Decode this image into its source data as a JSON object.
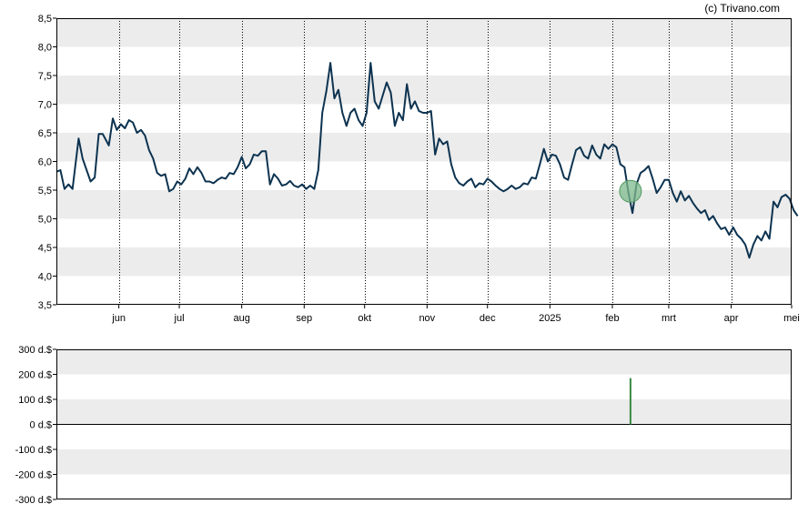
{
  "credit": "(c) Trivano.com",
  "colors": {
    "band": "#ececec",
    "line": "#0d3350",
    "marker_fill": "#7dba8c",
    "marker_stroke": "#4f9a60",
    "volume_bar": "#3a8a45",
    "axis": "#000000"
  },
  "chart_data": [
    {
      "type": "line",
      "title": "",
      "xlabel": "",
      "ylabel": "",
      "ylim": [
        3.5,
        8.5
      ],
      "yticks": [
        "3,5",
        "4,0",
        "4,5",
        "5,0",
        "5,5",
        "6,0",
        "6,5",
        "7,0",
        "7,5",
        "8,0",
        "8,5"
      ],
      "ytick_values": [
        3.5,
        4.0,
        4.5,
        5.0,
        5.5,
        6.0,
        6.5,
        7.0,
        7.5,
        8.0,
        8.5
      ],
      "grid": "alternating horizontal bands, dotted vertical month lines",
      "x_ticks": [
        {
          "label": "jun",
          "date": "2024-06-01"
        },
        {
          "label": "jul",
          "date": "2024-07-01"
        },
        {
          "label": "aug",
          "date": "2024-08-01"
        },
        {
          "label": "sep",
          "date": "2024-09-01"
        },
        {
          "label": "okt",
          "date": "2024-10-01"
        },
        {
          "label": "nov",
          "date": "2024-11-01"
        },
        {
          "label": "dec",
          "date": "2024-12-01"
        },
        {
          "label": "2025",
          "date": "2025-01-01"
        },
        {
          "label": "feb",
          "date": "2025-02-01"
        },
        {
          "label": "mrt",
          "date": "2025-03-01"
        },
        {
          "label": "apr",
          "date": "2025-04-01"
        },
        {
          "label": "mei",
          "date": "2025-05-01"
        }
      ],
      "series": [
        {
          "points": [
            [
              "2024-05-01",
              5.82
            ],
            [
              "2024-05-03",
              5.85
            ],
            [
              "2024-05-05",
              5.52
            ],
            [
              "2024-05-07",
              5.6
            ],
            [
              "2024-05-09",
              5.52
            ],
            [
              "2024-05-12",
              6.4
            ],
            [
              "2024-05-14",
              6.05
            ],
            [
              "2024-05-16",
              5.85
            ],
            [
              "2024-05-18",
              5.65
            ],
            [
              "2024-05-20",
              5.72
            ],
            [
              "2024-05-22",
              6.48
            ],
            [
              "2024-05-24",
              6.48
            ],
            [
              "2024-05-27",
              6.28
            ],
            [
              "2024-05-29",
              6.75
            ],
            [
              "2024-05-31",
              6.55
            ],
            [
              "2024-06-02",
              6.65
            ],
            [
              "2024-06-04",
              6.58
            ],
            [
              "2024-06-06",
              6.72
            ],
            [
              "2024-06-08",
              6.68
            ],
            [
              "2024-06-10",
              6.5
            ],
            [
              "2024-06-12",
              6.55
            ],
            [
              "2024-06-14",
              6.45
            ],
            [
              "2024-06-16",
              6.2
            ],
            [
              "2024-06-18",
              6.05
            ],
            [
              "2024-06-20",
              5.8
            ],
            [
              "2024-06-22",
              5.75
            ],
            [
              "2024-06-24",
              5.78
            ],
            [
              "2024-06-26",
              5.48
            ],
            [
              "2024-06-28",
              5.52
            ],
            [
              "2024-06-30",
              5.65
            ],
            [
              "2024-07-02",
              5.6
            ],
            [
              "2024-07-04",
              5.7
            ],
            [
              "2024-07-06",
              5.88
            ],
            [
              "2024-07-08",
              5.78
            ],
            [
              "2024-07-10",
              5.9
            ],
            [
              "2024-07-12",
              5.8
            ],
            [
              "2024-07-14",
              5.65
            ],
            [
              "2024-07-16",
              5.65
            ],
            [
              "2024-07-18",
              5.62
            ],
            [
              "2024-07-20",
              5.68
            ],
            [
              "2024-07-22",
              5.72
            ],
            [
              "2024-07-24",
              5.7
            ],
            [
              "2024-07-26",
              5.8
            ],
            [
              "2024-07-28",
              5.78
            ],
            [
              "2024-07-30",
              5.9
            ],
            [
              "2024-08-01",
              6.08
            ],
            [
              "2024-08-03",
              5.88
            ],
            [
              "2024-08-05",
              5.95
            ],
            [
              "2024-08-07",
              6.12
            ],
            [
              "2024-08-09",
              6.1
            ],
            [
              "2024-08-11",
              6.18
            ],
            [
              "2024-08-13",
              6.18
            ],
            [
              "2024-08-15",
              5.6
            ],
            [
              "2024-08-17",
              5.78
            ],
            [
              "2024-08-19",
              5.7
            ],
            [
              "2024-08-21",
              5.58
            ],
            [
              "2024-08-23",
              5.6
            ],
            [
              "2024-08-25",
              5.66
            ],
            [
              "2024-08-27",
              5.58
            ],
            [
              "2024-08-29",
              5.55
            ],
            [
              "2024-08-31",
              5.6
            ],
            [
              "2024-09-02",
              5.52
            ],
            [
              "2024-09-04",
              5.58
            ],
            [
              "2024-09-06",
              5.52
            ],
            [
              "2024-09-08",
              5.85
            ],
            [
              "2024-09-10",
              6.85
            ],
            [
              "2024-09-12",
              7.22
            ],
            [
              "2024-09-14",
              7.72
            ],
            [
              "2024-09-16",
              7.1
            ],
            [
              "2024-09-18",
              7.25
            ],
            [
              "2024-09-20",
              6.85
            ],
            [
              "2024-09-22",
              6.62
            ],
            [
              "2024-09-24",
              6.85
            ],
            [
              "2024-09-26",
              6.92
            ],
            [
              "2024-09-28",
              6.72
            ],
            [
              "2024-09-30",
              6.62
            ],
            [
              "2024-10-02",
              6.85
            ],
            [
              "2024-10-04",
              7.72
            ],
            [
              "2024-10-06",
              7.05
            ],
            [
              "2024-10-08",
              6.92
            ],
            [
              "2024-10-10",
              7.15
            ],
            [
              "2024-10-12",
              7.38
            ],
            [
              "2024-10-14",
              7.2
            ],
            [
              "2024-10-16",
              6.62
            ],
            [
              "2024-10-18",
              6.85
            ],
            [
              "2024-10-20",
              6.72
            ],
            [
              "2024-10-22",
              7.35
            ],
            [
              "2024-10-24",
              6.92
            ],
            [
              "2024-10-26",
              7.05
            ],
            [
              "2024-10-28",
              6.88
            ],
            [
              "2024-10-30",
              6.85
            ],
            [
              "2024-11-01",
              6.85
            ],
            [
              "2024-11-03",
              6.88
            ],
            [
              "2024-11-05",
              6.12
            ],
            [
              "2024-11-07",
              6.4
            ],
            [
              "2024-11-09",
              6.3
            ],
            [
              "2024-11-11",
              6.35
            ],
            [
              "2024-11-13",
              5.95
            ],
            [
              "2024-11-15",
              5.72
            ],
            [
              "2024-11-17",
              5.62
            ],
            [
              "2024-11-19",
              5.58
            ],
            [
              "2024-11-21",
              5.65
            ],
            [
              "2024-11-23",
              5.7
            ],
            [
              "2024-11-25",
              5.55
            ],
            [
              "2024-11-27",
              5.62
            ],
            [
              "2024-11-29",
              5.6
            ],
            [
              "2024-12-01",
              5.7
            ],
            [
              "2024-12-03",
              5.65
            ],
            [
              "2024-12-05",
              5.58
            ],
            [
              "2024-12-07",
              5.52
            ],
            [
              "2024-12-09",
              5.48
            ],
            [
              "2024-12-11",
              5.52
            ],
            [
              "2024-12-13",
              5.58
            ],
            [
              "2024-12-15",
              5.52
            ],
            [
              "2024-12-17",
              5.55
            ],
            [
              "2024-12-19",
              5.62
            ],
            [
              "2024-12-21",
              5.6
            ],
            [
              "2024-12-23",
              5.72
            ],
            [
              "2024-12-25",
              5.7
            ],
            [
              "2024-12-27",
              5.95
            ],
            [
              "2024-12-29",
              6.22
            ],
            [
              "2024-12-31",
              6.0
            ],
            [
              "2025-01-02",
              6.12
            ],
            [
              "2025-01-04",
              6.1
            ],
            [
              "2025-01-06",
              5.95
            ],
            [
              "2025-01-08",
              5.72
            ],
            [
              "2025-01-10",
              5.68
            ],
            [
              "2025-01-12",
              5.95
            ],
            [
              "2025-01-14",
              6.2
            ],
            [
              "2025-01-16",
              6.25
            ],
            [
              "2025-01-18",
              6.1
            ],
            [
              "2025-01-20",
              6.05
            ],
            [
              "2025-01-22",
              6.28
            ],
            [
              "2025-01-24",
              6.12
            ],
            [
              "2025-01-26",
              6.05
            ],
            [
              "2025-01-28",
              6.3
            ],
            [
              "2025-01-30",
              6.22
            ],
            [
              "2025-02-01",
              6.3
            ],
            [
              "2025-02-03",
              6.25
            ],
            [
              "2025-02-05",
              5.95
            ],
            [
              "2025-02-07",
              5.9
            ],
            [
              "2025-02-09",
              5.45
            ],
            [
              "2025-02-11",
              5.1
            ],
            [
              "2025-02-13",
              5.6
            ],
            [
              "2025-02-15",
              5.8
            ],
            [
              "2025-02-17",
              5.85
            ],
            [
              "2025-02-19",
              5.92
            ],
            [
              "2025-02-21",
              5.7
            ],
            [
              "2025-02-23",
              5.45
            ],
            [
              "2025-02-25",
              5.55
            ],
            [
              "2025-02-27",
              5.68
            ],
            [
              "2025-03-01",
              5.68
            ],
            [
              "2025-03-03",
              5.45
            ],
            [
              "2025-03-05",
              5.3
            ],
            [
              "2025-03-07",
              5.48
            ],
            [
              "2025-03-09",
              5.32
            ],
            [
              "2025-03-11",
              5.4
            ],
            [
              "2025-03-13",
              5.28
            ],
            [
              "2025-03-15",
              5.18
            ],
            [
              "2025-03-17",
              5.1
            ],
            [
              "2025-03-19",
              5.15
            ],
            [
              "2025-03-21",
              4.98
            ],
            [
              "2025-03-23",
              5.05
            ],
            [
              "2025-03-25",
              4.92
            ],
            [
              "2025-03-27",
              4.82
            ],
            [
              "2025-03-29",
              4.85
            ],
            [
              "2025-03-31",
              4.72
            ],
            [
              "2025-04-02",
              4.85
            ],
            [
              "2025-04-04",
              4.72
            ],
            [
              "2025-04-06",
              4.65
            ],
            [
              "2025-04-08",
              4.55
            ],
            [
              "2025-04-10",
              4.32
            ],
            [
              "2025-04-12",
              4.55
            ],
            [
              "2025-04-14",
              4.7
            ],
            [
              "2025-04-16",
              4.62
            ],
            [
              "2025-04-18",
              4.78
            ],
            [
              "2025-04-20",
              4.65
            ],
            [
              "2025-04-22",
              5.3
            ],
            [
              "2025-04-24",
              5.2
            ],
            [
              "2025-04-26",
              5.38
            ],
            [
              "2025-04-28",
              5.42
            ],
            [
              "2025-04-30",
              5.35
            ],
            [
              "2025-05-02",
              5.15
            ],
            [
              "2025-05-04",
              5.05
            ]
          ]
        }
      ],
      "marker": {
        "date": "2025-02-10",
        "value": 5.48
      }
    },
    {
      "type": "bar",
      "title": "",
      "xlabel": "",
      "ylabel": "",
      "ylim": [
        -300,
        300
      ],
      "yticks": [
        "300 d.$",
        "200 d.$",
        "100 d.$",
        "0 d.$",
        "-100 d.$",
        "-200 d.$",
        "-300 d.$"
      ],
      "ytick_values": [
        300,
        200,
        100,
        0,
        -100,
        -200,
        -300
      ],
      "grid": "alternating horizontal bands",
      "bars": [
        {
          "date": "2025-02-10",
          "value": 185
        }
      ]
    }
  ]
}
